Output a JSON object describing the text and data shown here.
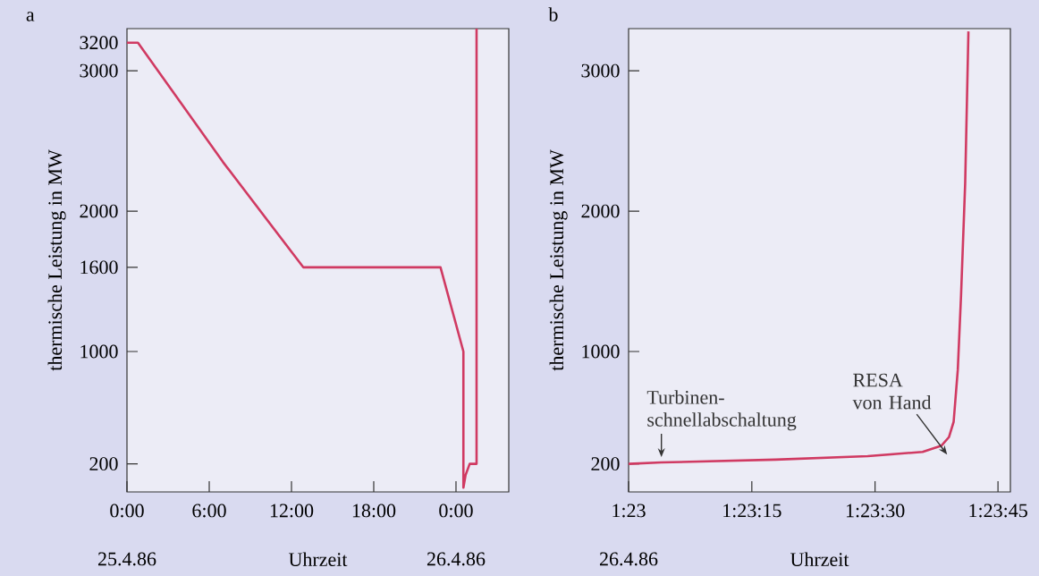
{
  "chart_data": [
    {
      "type": "line",
      "title": "a",
      "xlabel": "Uhrzeit",
      "ylabel": "thermische Leistung in MW",
      "color": "#d03a62",
      "x": [
        0,
        0.8,
        7.0,
        12.86,
        22.87,
        24.54,
        24.54,
        24.7,
        25.0,
        25.5,
        25.5
      ],
      "values": [
        3200,
        3200,
        2350,
        1600,
        1600,
        1000,
        30,
        120,
        200,
        200,
        3300
      ],
      "xlim": [
        0,
        27.85
      ],
      "ylim": [
        0,
        3300
      ],
      "xticks": [
        {
          "value": 0,
          "label": "0:00"
        },
        {
          "value": 6,
          "label": "6:00"
        },
        {
          "value": 12,
          "label": "12:00"
        },
        {
          "value": 18,
          "label": "18:00"
        },
        {
          "value": 24,
          "label": "0:00"
        }
      ],
      "yticks": [
        200,
        1000,
        1600,
        2000,
        3000,
        3200
      ],
      "annotations": [
        "25.4.86",
        "26.4.86"
      ]
    },
    {
      "type": "line",
      "title": "b",
      "xlabel": "Uhrzeit",
      "ylabel": "thermische Leistung in MW",
      "color": "#d03a62",
      "x": [
        1.38333,
        1.38444,
        1.38831,
        1.39142,
        1.39328,
        1.39392,
        1.39417,
        1.39433,
        1.39447,
        1.39458,
        1.39472,
        1.39483
      ],
      "values": [
        200,
        210,
        230,
        255,
        285,
        330,
        390,
        500,
        870,
        1400,
        2200,
        3280
      ],
      "xlim": [
        1.38333,
        1.39625
      ],
      "ylim": [
        0,
        3300
      ],
      "xticks": [
        {
          "value": 1.38333,
          "label": "1:23"
        },
        {
          "value": 1.3875,
          "label": "1:23:15"
        },
        {
          "value": 1.39167,
          "label": "1:23:30"
        },
        {
          "value": 1.39583,
          "label": "1:23:45"
        }
      ],
      "yticks": [
        200,
        1000,
        2000,
        3000
      ],
      "annotations": [
        "26.4.86",
        {
          "text": "Turbinen-schnellabschaltung",
          "x": 1.38444,
          "y": 210
        },
        {
          "text": "RESA von Hand",
          "x": 1.39417,
          "y": 330
        }
      ]
    }
  ]
}
